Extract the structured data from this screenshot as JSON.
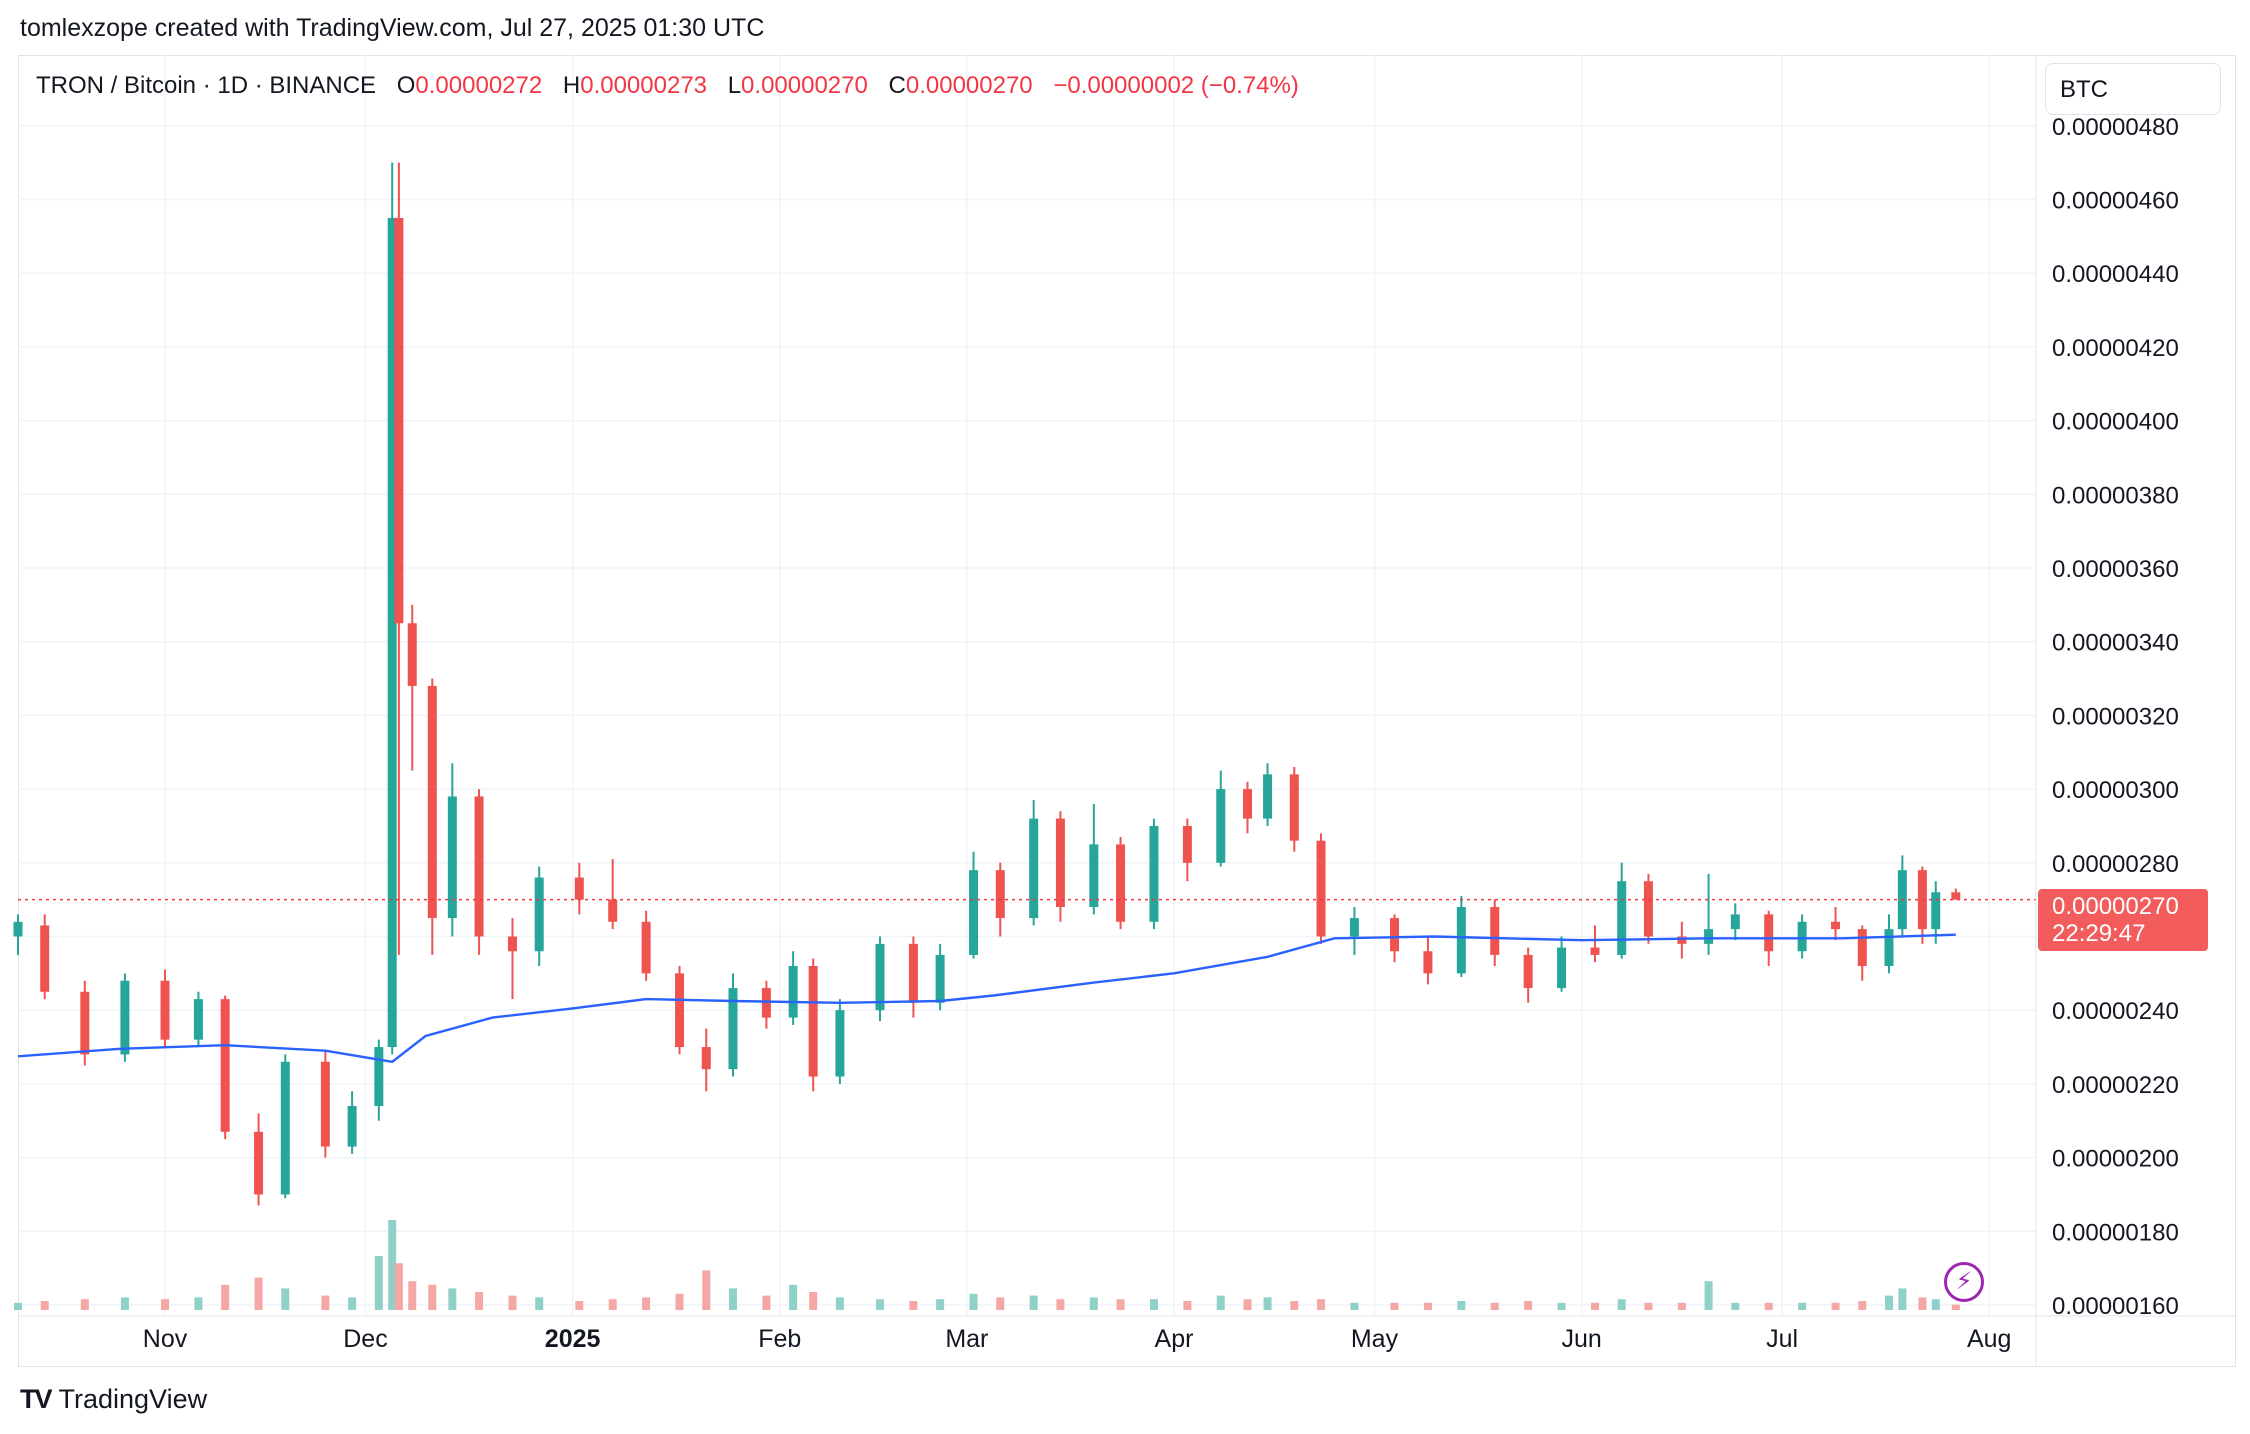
{
  "header": {
    "credit": "tomlexzope created with TradingView.com, Jul 27, 2025 01:30 UTC"
  },
  "legend": {
    "symbol": "TRON / Bitcoin · 1D · BINANCE",
    "open_label": "O",
    "open": "0.00000272",
    "high_label": "H",
    "high": "0.00000273",
    "low_label": "L",
    "low": "0.00000270",
    "close_label": "C",
    "close": "0.00000270",
    "change": "−0.00000002 (−0.74%)"
  },
  "currency": "BTC",
  "last_price": {
    "value": "0.00000270",
    "countdown": "22:29:47"
  },
  "footer": {
    "brand": "TradingView",
    "mark": "TV"
  },
  "colors": {
    "up": "#26a69a",
    "down": "#ef5350",
    "ma": "#2962ff",
    "price_label": "#f25c5c",
    "grid": "#f0f3fa"
  },
  "chart_data": {
    "type": "candlestick",
    "title": "TRON / Bitcoin · 1D · BINANCE",
    "y_ticks": [
      "0.00000480",
      "0.00000460",
      "0.00000440",
      "0.00000420",
      "0.00000400",
      "0.00000380",
      "0.00000360",
      "0.00000340",
      "0.00000320",
      "0.00000300",
      "0.00000280",
      "0.00000260",
      "0.00000240",
      "0.00000220",
      "0.00000200",
      "0.00000180",
      "0.00000160"
    ],
    "y_range": [
      1.6e-06,
      4.87e-06
    ],
    "x_ticks": [
      {
        "label": "Nov",
        "date": "2024-11-01"
      },
      {
        "label": "Dec",
        "date": "2024-12-01"
      },
      {
        "label": "2025",
        "date": "2025-01-01"
      },
      {
        "label": "Feb",
        "date": "2025-02-01"
      },
      {
        "label": "Mar",
        "date": "2025-03-01"
      },
      {
        "label": "Apr",
        "date": "2025-04-01"
      },
      {
        "label": "May",
        "date": "2025-05-01"
      },
      {
        "label": "Jun",
        "date": "2025-06-01"
      },
      {
        "label": "Jul",
        "date": "2025-07-01"
      },
      {
        "label": "Aug",
        "date": "2025-08-01"
      }
    ],
    "x_range": [
      "2024-10-10",
      "2025-08-08"
    ],
    "current_price": 2.7e-06,
    "ma_series": {
      "name": "",
      "points": [
        [
          "2024-10-10",
          2.275e-06
        ],
        [
          "2024-10-25",
          2.295e-06
        ],
        [
          "2024-11-10",
          2.305e-06
        ],
        [
          "2024-11-25",
          2.29e-06
        ],
        [
          "2024-12-05",
          2.26e-06
        ],
        [
          "2024-12-10",
          2.33e-06
        ],
        [
          "2024-12-20",
          2.38e-06
        ],
        [
          "2025-01-01",
          2.405e-06
        ],
        [
          "2025-01-12",
          2.43e-06
        ],
        [
          "2025-01-25",
          2.425e-06
        ],
        [
          "2025-02-10",
          2.42e-06
        ],
        [
          "2025-02-25",
          2.425e-06
        ],
        [
          "2025-03-05",
          2.44e-06
        ],
        [
          "2025-03-20",
          2.475e-06
        ],
        [
          "2025-04-01",
          2.5e-06
        ],
        [
          "2025-04-15",
          2.545e-06
        ],
        [
          "2025-04-25",
          2.595e-06
        ],
        [
          "2025-05-10",
          2.6e-06
        ],
        [
          "2025-06-01",
          2.59e-06
        ],
        [
          "2025-06-20",
          2.595e-06
        ],
        [
          "2025-07-10",
          2.595e-06
        ],
        [
          "2025-07-27",
          2.605e-06
        ]
      ]
    },
    "series": [
      {
        "date": "2024-10-10",
        "open": 2.6e-06,
        "high": 2.66e-06,
        "low": 2.55e-06,
        "close": 2.64e-06,
        "volume": 4
      },
      {
        "date": "2024-10-14",
        "open": 2.63e-06,
        "high": 2.66e-06,
        "low": 2.43e-06,
        "close": 2.45e-06,
        "volume": 5
      },
      {
        "date": "2024-10-20",
        "open": 2.45e-06,
        "high": 2.48e-06,
        "low": 2.25e-06,
        "close": 2.28e-06,
        "volume": 6
      },
      {
        "date": "2024-10-26",
        "open": 2.28e-06,
        "high": 2.5e-06,
        "low": 2.26e-06,
        "close": 2.48e-06,
        "volume": 7
      },
      {
        "date": "2024-11-01",
        "open": 2.48e-06,
        "high": 2.51e-06,
        "low": 2.3e-06,
        "close": 2.32e-06,
        "volume": 6
      },
      {
        "date": "2024-11-06",
        "open": 2.32e-06,
        "high": 2.45e-06,
        "low": 2.3e-06,
        "close": 2.43e-06,
        "volume": 7
      },
      {
        "date": "2024-11-10",
        "open": 2.43e-06,
        "high": 2.44e-06,
        "low": 2.05e-06,
        "close": 2.07e-06,
        "volume": 14
      },
      {
        "date": "2024-11-15",
        "open": 2.07e-06,
        "high": 2.12e-06,
        "low": 1.87e-06,
        "close": 1.9e-06,
        "volume": 18
      },
      {
        "date": "2024-11-19",
        "open": 1.9e-06,
        "high": 2.28e-06,
        "low": 1.89e-06,
        "close": 2.26e-06,
        "volume": 12
      },
      {
        "date": "2024-11-25",
        "open": 2.26e-06,
        "high": 2.29e-06,
        "low": 2e-06,
        "close": 2.03e-06,
        "volume": 8
      },
      {
        "date": "2024-11-29",
        "open": 2.03e-06,
        "high": 2.18e-06,
        "low": 2.01e-06,
        "close": 2.14e-06,
        "volume": 7
      },
      {
        "date": "2024-12-03",
        "open": 2.14e-06,
        "high": 2.32e-06,
        "low": 2.1e-06,
        "close": 2.3e-06,
        "volume": 30
      },
      {
        "date": "2024-12-05",
        "open": 2.3e-06,
        "high": 4.7e-06,
        "low": 2.28e-06,
        "close": 4.55e-06,
        "volume": 50
      },
      {
        "date": "2024-12-06",
        "open": 4.55e-06,
        "high": 4.7e-06,
        "low": 2.55e-06,
        "close": 3.45e-06,
        "volume": 26
      },
      {
        "date": "2024-12-08",
        "open": 3.45e-06,
        "high": 3.5e-06,
        "low": 3.05e-06,
        "close": 3.28e-06,
        "volume": 16
      },
      {
        "date": "2024-12-11",
        "open": 3.28e-06,
        "high": 3.3e-06,
        "low": 2.55e-06,
        "close": 2.65e-06,
        "volume": 14
      },
      {
        "date": "2024-12-14",
        "open": 2.65e-06,
        "high": 3.07e-06,
        "low": 2.6e-06,
        "close": 2.98e-06,
        "volume": 12
      },
      {
        "date": "2024-12-18",
        "open": 2.98e-06,
        "high": 3e-06,
        "low": 2.55e-06,
        "close": 2.6e-06,
        "volume": 10
      },
      {
        "date": "2024-12-23",
        "open": 2.6e-06,
        "high": 2.65e-06,
        "low": 2.43e-06,
        "close": 2.56e-06,
        "volume": 8
      },
      {
        "date": "2024-12-27",
        "open": 2.56e-06,
        "high": 2.79e-06,
        "low": 2.52e-06,
        "close": 2.76e-06,
        "volume": 7
      },
      {
        "date": "2025-01-02",
        "open": 2.76e-06,
        "high": 2.8e-06,
        "low": 2.66e-06,
        "close": 2.7e-06,
        "volume": 5
      },
      {
        "date": "2025-01-07",
        "open": 2.7e-06,
        "high": 2.81e-06,
        "low": 2.62e-06,
        "close": 2.64e-06,
        "volume": 6
      },
      {
        "date": "2025-01-12",
        "open": 2.64e-06,
        "high": 2.67e-06,
        "low": 2.48e-06,
        "close": 2.5e-06,
        "volume": 7
      },
      {
        "date": "2025-01-17",
        "open": 2.5e-06,
        "high": 2.52e-06,
        "low": 2.28e-06,
        "close": 2.3e-06,
        "volume": 9
      },
      {
        "date": "2025-01-21",
        "open": 2.3e-06,
        "high": 2.35e-06,
        "low": 2.18e-06,
        "close": 2.24e-06,
        "volume": 22
      },
      {
        "date": "2025-01-25",
        "open": 2.24e-06,
        "high": 2.5e-06,
        "low": 2.22e-06,
        "close": 2.46e-06,
        "volume": 12
      },
      {
        "date": "2025-01-30",
        "open": 2.46e-06,
        "high": 2.48e-06,
        "low": 2.35e-06,
        "close": 2.38e-06,
        "volume": 8
      },
      {
        "date": "2025-02-03",
        "open": 2.38e-06,
        "high": 2.56e-06,
        "low": 2.36e-06,
        "close": 2.52e-06,
        "volume": 14
      },
      {
        "date": "2025-02-06",
        "open": 2.52e-06,
        "high": 2.54e-06,
        "low": 2.18e-06,
        "close": 2.22e-06,
        "volume": 10
      },
      {
        "date": "2025-02-10",
        "open": 2.22e-06,
        "high": 2.43e-06,
        "low": 2.2e-06,
        "close": 2.4e-06,
        "volume": 7
      },
      {
        "date": "2025-02-16",
        "open": 2.4e-06,
        "high": 2.6e-06,
        "low": 2.37e-06,
        "close": 2.58e-06,
        "volume": 6
      },
      {
        "date": "2025-02-21",
        "open": 2.58e-06,
        "high": 2.6e-06,
        "low": 2.38e-06,
        "close": 2.42e-06,
        "volume": 5
      },
      {
        "date": "2025-02-25",
        "open": 2.42e-06,
        "high": 2.58e-06,
        "low": 2.4e-06,
        "close": 2.55e-06,
        "volume": 6
      },
      {
        "date": "2025-03-02",
        "open": 2.55e-06,
        "high": 2.83e-06,
        "low": 2.54e-06,
        "close": 2.78e-06,
        "volume": 9
      },
      {
        "date": "2025-03-06",
        "open": 2.78e-06,
        "high": 2.8e-06,
        "low": 2.6e-06,
        "close": 2.65e-06,
        "volume": 7
      },
      {
        "date": "2025-03-11",
        "open": 2.65e-06,
        "high": 2.97e-06,
        "low": 2.63e-06,
        "close": 2.92e-06,
        "volume": 8
      },
      {
        "date": "2025-03-15",
        "open": 2.92e-06,
        "high": 2.94e-06,
        "low": 2.64e-06,
        "close": 2.68e-06,
        "volume": 6
      },
      {
        "date": "2025-03-20",
        "open": 2.68e-06,
        "high": 2.96e-06,
        "low": 2.66e-06,
        "close": 2.85e-06,
        "volume": 7
      },
      {
        "date": "2025-03-24",
        "open": 2.85e-06,
        "high": 2.87e-06,
        "low": 2.62e-06,
        "close": 2.64e-06,
        "volume": 6
      },
      {
        "date": "2025-03-29",
        "open": 2.64e-06,
        "high": 2.92e-06,
        "low": 2.62e-06,
        "close": 2.9e-06,
        "volume": 6
      },
      {
        "date": "2025-04-03",
        "open": 2.9e-06,
        "high": 2.92e-06,
        "low": 2.75e-06,
        "close": 2.8e-06,
        "volume": 5
      },
      {
        "date": "2025-04-08",
        "open": 2.8e-06,
        "high": 3.05e-06,
        "low": 2.79e-06,
        "close": 3e-06,
        "volume": 8
      },
      {
        "date": "2025-04-12",
        "open": 3e-06,
        "high": 3.02e-06,
        "low": 2.88e-06,
        "close": 2.92e-06,
        "volume": 6
      },
      {
        "date": "2025-04-15",
        "open": 2.92e-06,
        "high": 3.07e-06,
        "low": 2.9e-06,
        "close": 3.04e-06,
        "volume": 7
      },
      {
        "date": "2025-04-19",
        "open": 3.04e-06,
        "high": 3.06e-06,
        "low": 2.83e-06,
        "close": 2.86e-06,
        "volume": 5
      },
      {
        "date": "2025-04-23",
        "open": 2.86e-06,
        "high": 2.88e-06,
        "low": 2.58e-06,
        "close": 2.6e-06,
        "volume": 6
      },
      {
        "date": "2025-04-28",
        "open": 2.6e-06,
        "high": 2.68e-06,
        "low": 2.55e-06,
        "close": 2.65e-06,
        "volume": 4
      },
      {
        "date": "2025-05-04",
        "open": 2.65e-06,
        "high": 2.66e-06,
        "low": 2.53e-06,
        "close": 2.56e-06,
        "volume": 4
      },
      {
        "date": "2025-05-09",
        "open": 2.56e-06,
        "high": 2.6e-06,
        "low": 2.47e-06,
        "close": 2.5e-06,
        "volume": 4
      },
      {
        "date": "2025-05-14",
        "open": 2.5e-06,
        "high": 2.71e-06,
        "low": 2.49e-06,
        "close": 2.68e-06,
        "volume": 5
      },
      {
        "date": "2025-05-19",
        "open": 2.68e-06,
        "high": 2.7e-06,
        "low": 2.52e-06,
        "close": 2.55e-06,
        "volume": 4
      },
      {
        "date": "2025-05-24",
        "open": 2.55e-06,
        "high": 2.57e-06,
        "low": 2.42e-06,
        "close": 2.46e-06,
        "volume": 5
      },
      {
        "date": "2025-05-29",
        "open": 2.46e-06,
        "high": 2.6e-06,
        "low": 2.45e-06,
        "close": 2.57e-06,
        "volume": 4
      },
      {
        "date": "2025-06-03",
        "open": 2.57e-06,
        "high": 2.63e-06,
        "low": 2.53e-06,
        "close": 2.55e-06,
        "volume": 4
      },
      {
        "date": "2025-06-07",
        "open": 2.55e-06,
        "high": 2.8e-06,
        "low": 2.54e-06,
        "close": 2.75e-06,
        "volume": 6
      },
      {
        "date": "2025-06-11",
        "open": 2.75e-06,
        "high": 2.77e-06,
        "low": 2.58e-06,
        "close": 2.6e-06,
        "volume": 4
      },
      {
        "date": "2025-06-16",
        "open": 2.6e-06,
        "high": 2.64e-06,
        "low": 2.54e-06,
        "close": 2.58e-06,
        "volume": 4
      },
      {
        "date": "2025-06-20",
        "open": 2.58e-06,
        "high": 2.77e-06,
        "low": 2.55e-06,
        "close": 2.62e-06,
        "volume": 16
      },
      {
        "date": "2025-06-24",
        "open": 2.62e-06,
        "high": 2.69e-06,
        "low": 2.59e-06,
        "close": 2.66e-06,
        "volume": 4
      },
      {
        "date": "2025-06-29",
        "open": 2.66e-06,
        "high": 2.67e-06,
        "low": 2.52e-06,
        "close": 2.56e-06,
        "volume": 4
      },
      {
        "date": "2025-07-04",
        "open": 2.56e-06,
        "high": 2.66e-06,
        "low": 2.54e-06,
        "close": 2.64e-06,
        "volume": 4
      },
      {
        "date": "2025-07-09",
        "open": 2.64e-06,
        "high": 2.68e-06,
        "low": 2.59e-06,
        "close": 2.62e-06,
        "volume": 4
      },
      {
        "date": "2025-07-13",
        "open": 2.62e-06,
        "high": 2.63e-06,
        "low": 2.48e-06,
        "close": 2.52e-06,
        "volume": 5
      },
      {
        "date": "2025-07-17",
        "open": 2.52e-06,
        "high": 2.66e-06,
        "low": 2.5e-06,
        "close": 2.62e-06,
        "volume": 8
      },
      {
        "date": "2025-07-19",
        "open": 2.62e-06,
        "high": 2.82e-06,
        "low": 2.6e-06,
        "close": 2.78e-06,
        "volume": 12
      },
      {
        "date": "2025-07-22",
        "open": 2.78e-06,
        "high": 2.79e-06,
        "low": 2.58e-06,
        "close": 2.62e-06,
        "volume": 7
      },
      {
        "date": "2025-07-24",
        "open": 2.62e-06,
        "high": 2.75e-06,
        "low": 2.58e-06,
        "close": 2.72e-06,
        "volume": 6
      },
      {
        "date": "2025-07-27",
        "open": 2.72e-06,
        "high": 2.73e-06,
        "low": 2.7e-06,
        "close": 2.7e-06,
        "volume": 3
      }
    ]
  }
}
